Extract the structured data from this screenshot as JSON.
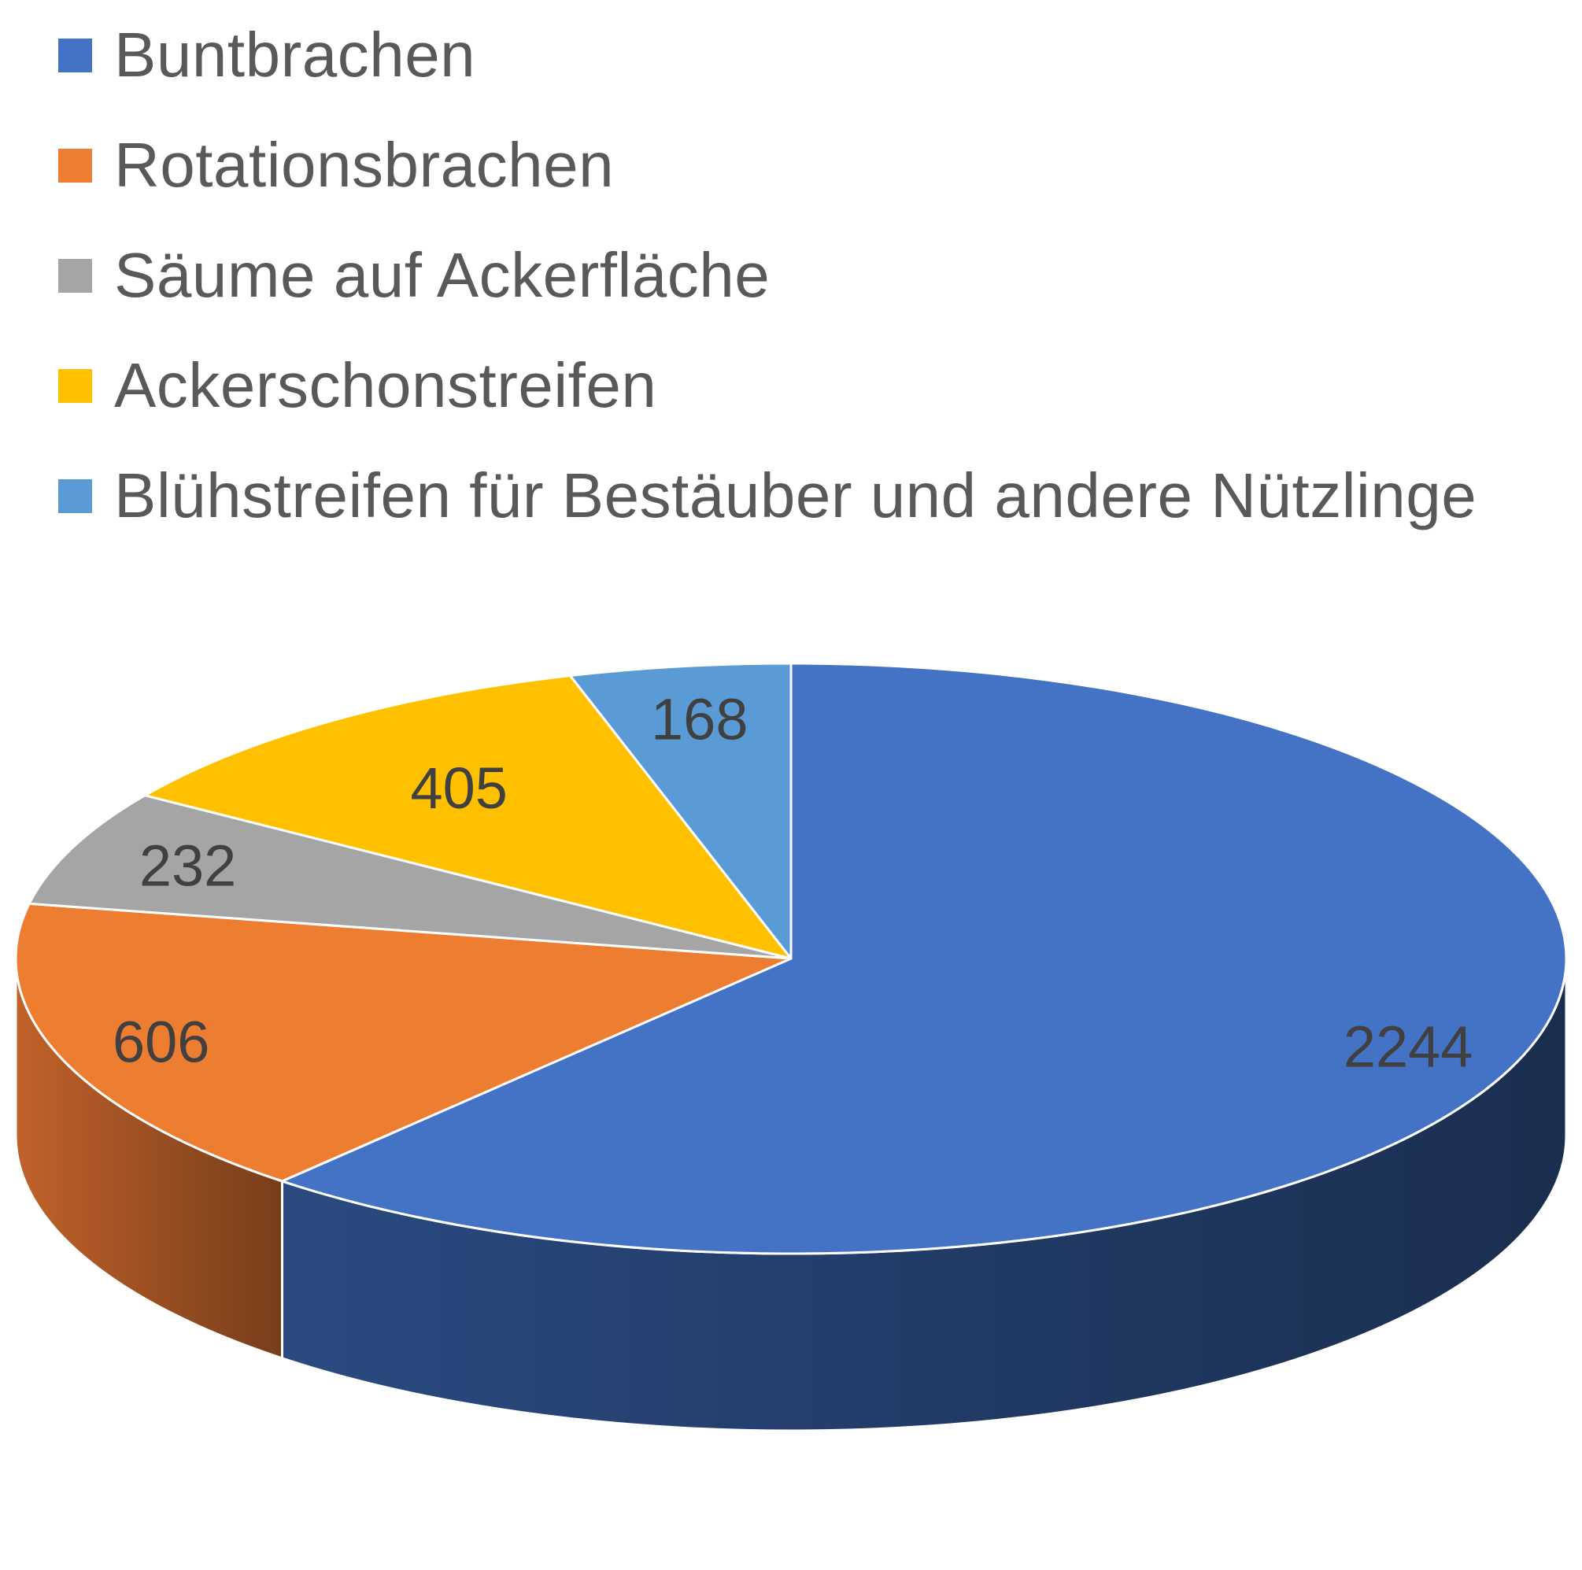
{
  "chart_data": {
    "type": "pie",
    "style": "3d",
    "legend_position": "top-left",
    "categories": [
      "Buntbrachen",
      "Rotationsbrachen",
      "Säume auf Ackerfläche",
      "Ackerschonstreifen",
      "Blühstreifen für Bestäuber und andere Nützlinge"
    ],
    "values": [
      2244,
      606,
      232,
      405,
      168
    ],
    "data_labels": [
      "2244",
      "606",
      "232",
      "405",
      "168"
    ],
    "colors": [
      "#4472C4",
      "#ED7D31",
      "#A5A5A5",
      "#FFC000",
      "#5B9BD5"
    ],
    "side_colors": [
      "#2A4A80",
      "#C0622A",
      "#7F7F7F",
      "#C79500",
      "#3E74A8"
    ]
  }
}
